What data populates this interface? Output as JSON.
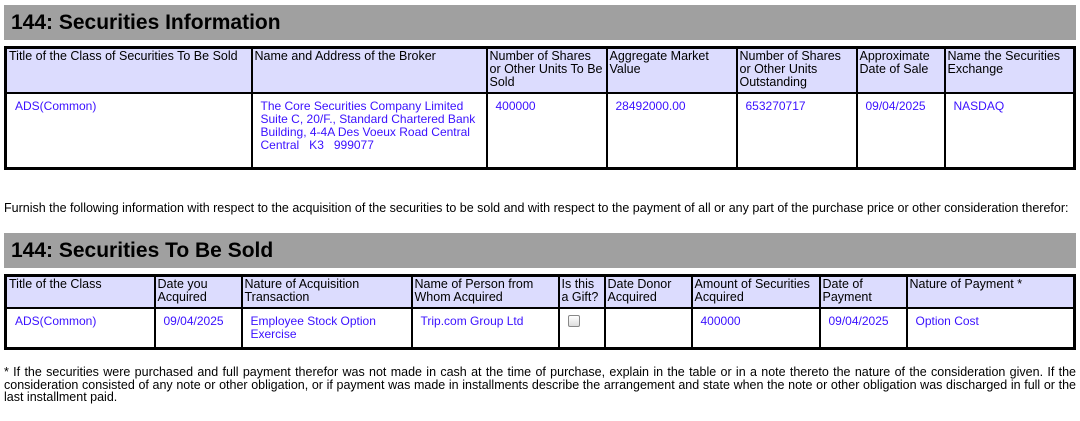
{
  "section1": {
    "title": "144: Securities Information",
    "headers": [
      "Title of the Class of Securities To Be Sold",
      "Name and Address of the Broker",
      "Number of Shares or Other Units To Be Sold",
      "Aggregate Market Value",
      "Number of Shares or Other Units Outstanding",
      "Approximate Date of Sale",
      "Name the Securities Exchange"
    ],
    "row": {
      "class": "ADS(Common)",
      "broker_name": "The Core Securities Company Limited",
      "broker_addr1": "Suite C, 20/F., Standard Chartered Bank",
      "broker_addr2": "Building, 4-4A Des Voeux Road Central",
      "broker_addr3": "Central   K3   999077",
      "shares": "400000",
      "market_value": "28492000.00",
      "outstanding": "653270717",
      "date": "09/04/2025",
      "exchange": "NASDAQ"
    }
  },
  "instruction": "Furnish the following information with respect to the acquisition of the securities to be sold and with respect to the payment of all or any part of the purchase price or other consideration therefor:",
  "section2": {
    "title": "144: Securities To Be Sold",
    "headers": [
      "Title of the Class",
      "Date you Acquired",
      "Nature of Acquisition Transaction",
      "Name of Person from Whom Acquired",
      "Is this a Gift?",
      "Date Donor Acquired",
      "Amount of Securities Acquired",
      "Date of Payment",
      "Nature of Payment *"
    ],
    "row": {
      "class": "ADS(Common)",
      "date_acquired": "09/04/2025",
      "nature": "Employee Stock Option Exercise",
      "from": "Trip.com Group Ltd",
      "gift": false,
      "donor_date": "",
      "amount": "400000",
      "payment_date": "09/04/2025",
      "payment_nature": "Option Cost"
    }
  },
  "footnote": "* If the securities were purchased and full payment therefor was not made in cash at the time of purchase, explain in the table or in a note thereto the nature of the consideration given. If the consideration consisted of any note or other obligation, or if payment was made in installments describe the arrangement and state when the note or other obligation was discharged in full or the last installment paid."
}
